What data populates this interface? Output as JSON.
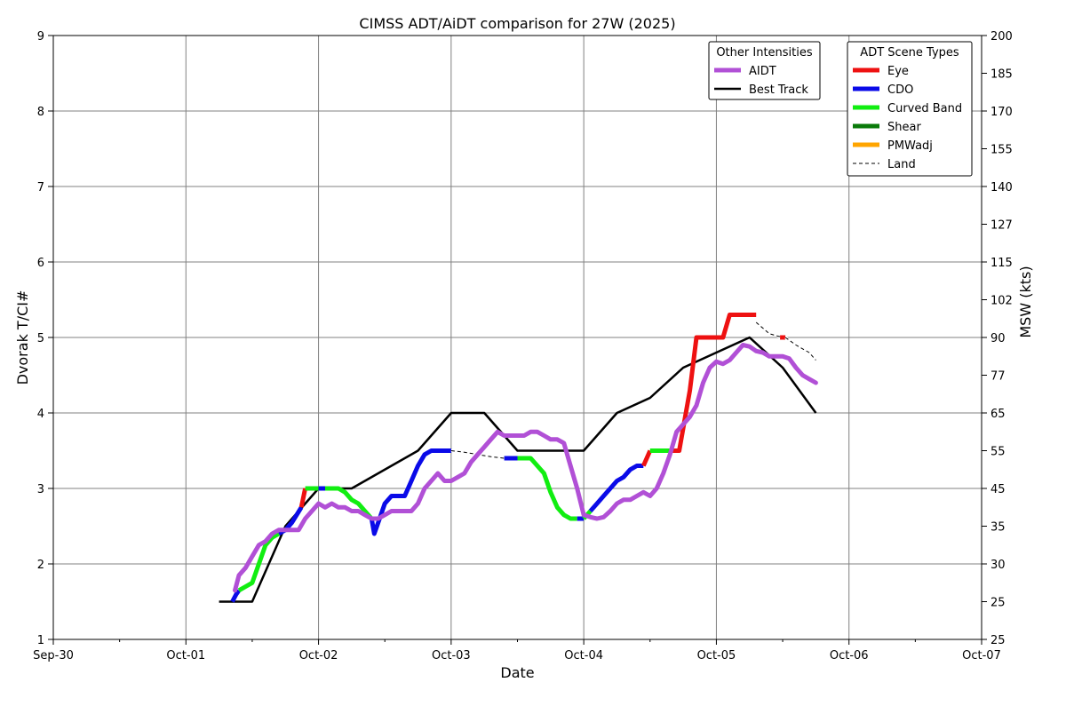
{
  "chart_data": {
    "type": "line",
    "title": "CIMSS ADT/AiDT comparison for 27W (2025)",
    "xlabel": "Date",
    "ylabel": "Dvorak T/CI#",
    "y2label": "MSW (kts)",
    "x_range": [
      "Sep-30",
      "Oct-07"
    ],
    "x_tick_labels": [
      "Sep-30",
      "Oct-01",
      "Oct-02",
      "Oct-03",
      "Oct-04",
      "Oct-05",
      "Oct-06",
      "Oct-07"
    ],
    "ylim": [
      1,
      9
    ],
    "y_tick_labels": [
      "1",
      "2",
      "3",
      "4",
      "5",
      "6",
      "7",
      "8",
      "9"
    ],
    "y2_tick_labels": [
      "25",
      "25",
      "30",
      "35",
      "45",
      "55",
      "65",
      "77",
      "90",
      "102",
      "115",
      "127",
      "140",
      "155",
      "170",
      "185",
      "200"
    ],
    "grid": true,
    "legends": [
      {
        "title": "Other Intensities",
        "placement": "top-right",
        "entries": [
          {
            "label": "AIDT",
            "color": "#b150d6",
            "style": "thick"
          },
          {
            "label": "Best Track",
            "color": "#000000",
            "style": "solid"
          }
        ]
      },
      {
        "title": "ADT Scene Types",
        "placement": "top-right",
        "entries": [
          {
            "label": "Eye",
            "color": "#ee1111",
            "style": "thick"
          },
          {
            "label": "CDO",
            "color": "#0a0ae8",
            "style": "thick"
          },
          {
            "label": "Curved Band",
            "color": "#11ee11",
            "style": "thick"
          },
          {
            "label": "Shear",
            "color": "#0a7a0a",
            "style": "thick"
          },
          {
            "label": "PMWadj",
            "color": "#ffa500",
            "style": "thick"
          },
          {
            "label": "Land",
            "color": "#000000",
            "style": "dashed"
          }
        ]
      }
    ],
    "series": [
      {
        "name": "Best Track",
        "color": "#000000",
        "x": [
          1.25,
          1.5,
          1.75,
          2.0,
          2.25,
          2.75,
          3.0,
          3.25,
          3.5,
          4.0,
          4.25,
          4.5,
          4.75,
          5.0,
          5.25,
          5.5,
          5.75
        ],
        "y": [
          1.5,
          1.5,
          2.5,
          3.0,
          3.0,
          3.5,
          4.0,
          4.0,
          3.5,
          3.5,
          4.0,
          4.2,
          4.6,
          4.8,
          5.0,
          4.6,
          4.0
        ]
      },
      {
        "name": "AIDT",
        "color": "#b150d6",
        "x": [
          1.37,
          1.4,
          1.45,
          1.5,
          1.55,
          1.6,
          1.65,
          1.7,
          1.75,
          1.8,
          1.85,
          1.9,
          1.95,
          2.0,
          2.05,
          2.1,
          2.15,
          2.2,
          2.25,
          2.3,
          2.35,
          2.4,
          2.45,
          2.5,
          2.55,
          2.6,
          2.65,
          2.7,
          2.75,
          2.8,
          2.85,
          2.9,
          2.95,
          3.0,
          3.05,
          3.1,
          3.15,
          3.2,
          3.25,
          3.3,
          3.35,
          3.4,
          3.45,
          3.5,
          3.55,
          3.6,
          3.65,
          3.7,
          3.75,
          3.8,
          3.85,
          3.9,
          3.95,
          4.0,
          4.05,
          4.1,
          4.15,
          4.2,
          4.25,
          4.3,
          4.35,
          4.4,
          4.45,
          4.5,
          4.55,
          4.6,
          4.65,
          4.7,
          4.75,
          4.8,
          4.85,
          4.9,
          4.95,
          5.0,
          5.05,
          5.1,
          5.15,
          5.2,
          5.25,
          5.3,
          5.35,
          5.4,
          5.45,
          5.5,
          5.55,
          5.6,
          5.65,
          5.7,
          5.75
        ],
        "y": [
          1.65,
          1.85,
          1.95,
          2.1,
          2.25,
          2.3,
          2.4,
          2.45,
          2.45,
          2.45,
          2.45,
          2.6,
          2.7,
          2.8,
          2.75,
          2.8,
          2.75,
          2.75,
          2.7,
          2.7,
          2.65,
          2.6,
          2.6,
          2.65,
          2.7,
          2.7,
          2.7,
          2.7,
          2.8,
          3.0,
          3.1,
          3.2,
          3.1,
          3.1,
          3.15,
          3.2,
          3.35,
          3.45,
          3.55,
          3.65,
          3.75,
          3.7,
          3.7,
          3.7,
          3.7,
          3.75,
          3.75,
          3.7,
          3.65,
          3.65,
          3.6,
          3.3,
          3.0,
          2.65,
          2.62,
          2.6,
          2.62,
          2.7,
          2.8,
          2.85,
          2.85,
          2.9,
          2.95,
          2.9,
          3.0,
          3.2,
          3.45,
          3.75,
          3.85,
          3.95,
          4.1,
          4.4,
          4.6,
          4.68,
          4.65,
          4.7,
          4.8,
          4.9,
          4.88,
          4.82,
          4.8,
          4.75,
          4.75,
          4.75,
          4.72,
          4.6,
          4.5,
          4.45,
          4.4
        ]
      },
      {
        "name": "ADT",
        "segments": [
          {
            "scene": "CDO",
            "x": [
              1.35,
              1.38,
              1.4
            ],
            "y": [
              1.5,
              1.6,
              1.65
            ]
          },
          {
            "scene": "Curved Band",
            "x": [
              1.4,
              1.45,
              1.5,
              1.55,
              1.6,
              1.65,
              1.7
            ],
            "y": [
              1.65,
              1.7,
              1.75,
              2.0,
              2.25,
              2.35,
              2.4
            ]
          },
          {
            "scene": "CDO",
            "x": [
              1.7,
              1.75,
              1.8,
              1.87
            ],
            "y": [
              2.4,
              2.45,
              2.55,
              2.75
            ]
          },
          {
            "scene": "Eye",
            "x": [
              1.87,
              1.9
            ],
            "y": [
              2.75,
              3.0
            ]
          },
          {
            "scene": "Curved Band",
            "x": [
              1.9,
              1.95,
              2.0
            ],
            "y": [
              3.0,
              3.0,
              3.0
            ]
          },
          {
            "scene": "CDO",
            "x": [
              2.0,
              2.05
            ],
            "y": [
              3.0,
              3.0
            ]
          },
          {
            "scene": "Curved Band",
            "x": [
              2.05,
              2.1,
              2.15,
              2.2,
              2.25,
              2.3,
              2.35,
              2.4
            ],
            "y": [
              3.0,
              3.0,
              3.0,
              2.95,
              2.85,
              2.8,
              2.7,
              2.6
            ]
          },
          {
            "scene": "CDO",
            "x": [
              2.4,
              2.42,
              2.45,
              2.5,
              2.55,
              2.6,
              2.65,
              2.7,
              2.75,
              2.8,
              2.85,
              2.9,
              2.95,
              3.0
            ],
            "y": [
              2.6,
              2.4,
              2.55,
              2.8,
              2.9,
              2.9,
              2.9,
              3.1,
              3.3,
              3.45,
              3.5,
              3.5,
              3.5,
              3.5
            ]
          },
          {
            "scene": "Land",
            "x": [
              3.0,
              3.1,
              3.2,
              3.3,
              3.4
            ],
            "y": [
              3.5,
              3.48,
              3.45,
              3.42,
              3.4
            ]
          },
          {
            "scene": "CDO",
            "x": [
              3.4,
              3.5
            ],
            "y": [
              3.4,
              3.4
            ]
          },
          {
            "scene": "Curved Band",
            "x": [
              3.5,
              3.55,
              3.6,
              3.65,
              3.7,
              3.75,
              3.8,
              3.85,
              3.9,
              3.95
            ],
            "y": [
              3.4,
              3.4,
              3.4,
              3.3,
              3.2,
              2.95,
              2.75,
              2.65,
              2.6,
              2.6
            ]
          },
          {
            "scene": "CDO",
            "x": [
              3.95,
              4.0
            ],
            "y": [
              2.6,
              2.6
            ]
          },
          {
            "scene": "Curved Band",
            "x": [
              4.0,
              4.05
            ],
            "y": [
              2.6,
              2.7
            ]
          },
          {
            "scene": "CDO",
            "x": [
              4.05,
              4.1,
              4.15,
              4.2,
              4.25,
              4.3,
              4.35,
              4.4,
              4.45
            ],
            "y": [
              2.7,
              2.8,
              2.9,
              3.0,
              3.1,
              3.15,
              3.25,
              3.3,
              3.3
            ]
          },
          {
            "scene": "Eye",
            "x": [
              4.45,
              4.5
            ],
            "y": [
              3.3,
              3.5
            ]
          },
          {
            "scene": "Curved Band",
            "x": [
              4.5,
              4.6,
              4.67
            ],
            "y": [
              3.5,
              3.5,
              3.5
            ]
          },
          {
            "scene": "Eye",
            "x": [
              4.67,
              4.72,
              4.75,
              4.8,
              4.85,
              4.9,
              4.95,
              5.05,
              5.1,
              5.15,
              5.2,
              5.25,
              5.3
            ],
            "y": [
              3.5,
              3.5,
              3.8,
              4.3,
              5.0,
              5.0,
              5.0,
              5.0,
              5.3,
              5.3,
              5.3,
              5.3,
              5.3
            ]
          },
          {
            "scene": "Land",
            "x": [
              5.3,
              5.4,
              5.5
            ],
            "y": [
              5.2,
              5.05,
              5.0
            ]
          },
          {
            "scene": "Eye",
            "x": [
              5.48,
              5.52
            ],
            "y": [
              5.0,
              5.0
            ]
          },
          {
            "scene": "Land",
            "x": [
              5.52,
              5.6,
              5.7,
              5.75
            ],
            "y": [
              5.0,
              4.9,
              4.8,
              4.7
            ]
          }
        ]
      }
    ]
  }
}
